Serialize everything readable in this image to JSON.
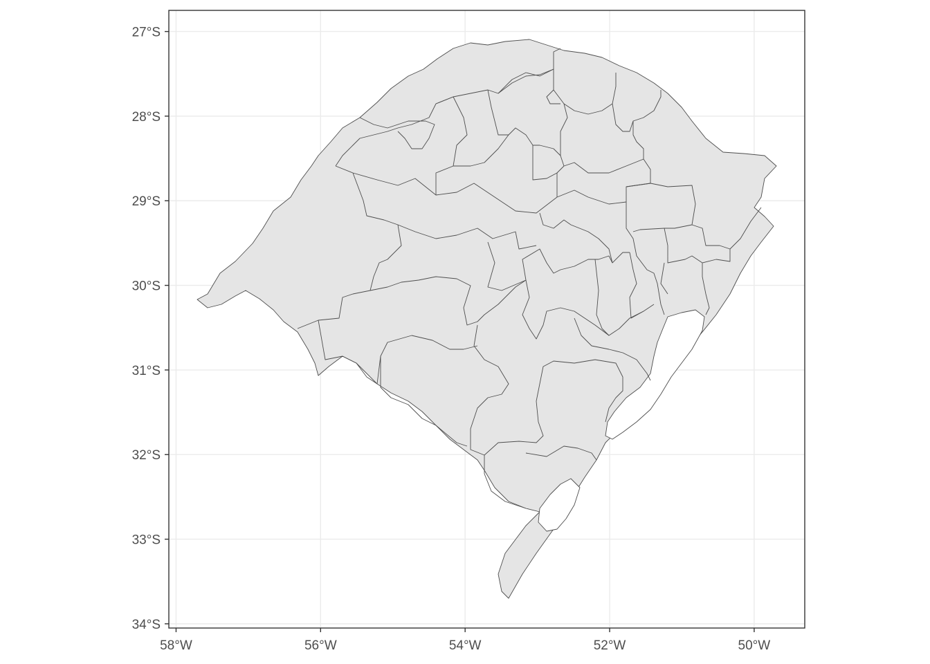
{
  "map": {
    "x_axis": {
      "ticks": [
        {
          "value": -58,
          "label": "58°W"
        },
        {
          "value": -56,
          "label": "56°W"
        },
        {
          "value": -54,
          "label": "54°W"
        },
        {
          "value": -52,
          "label": "52°W"
        },
        {
          "value": -50,
          "label": "50°W"
        }
      ],
      "range": [
        -58.1,
        -49.3
      ]
    },
    "y_axis": {
      "ticks": [
        {
          "value": -27,
          "label": "27°S"
        },
        {
          "value": -28,
          "label": "28°S"
        },
        {
          "value": -29,
          "label": "29°S"
        },
        {
          "value": -30,
          "label": "30°S"
        },
        {
          "value": -31,
          "label": "31°S"
        },
        {
          "value": -32,
          "label": "32°S"
        },
        {
          "value": -33,
          "label": "33°S"
        },
        {
          "value": -34,
          "label": "34°S"
        }
      ],
      "range": [
        -34.05,
        -26.75
      ]
    },
    "grid": true,
    "fill_color": "#e5e5e5",
    "stroke_color": "#4d4d4d"
  }
}
